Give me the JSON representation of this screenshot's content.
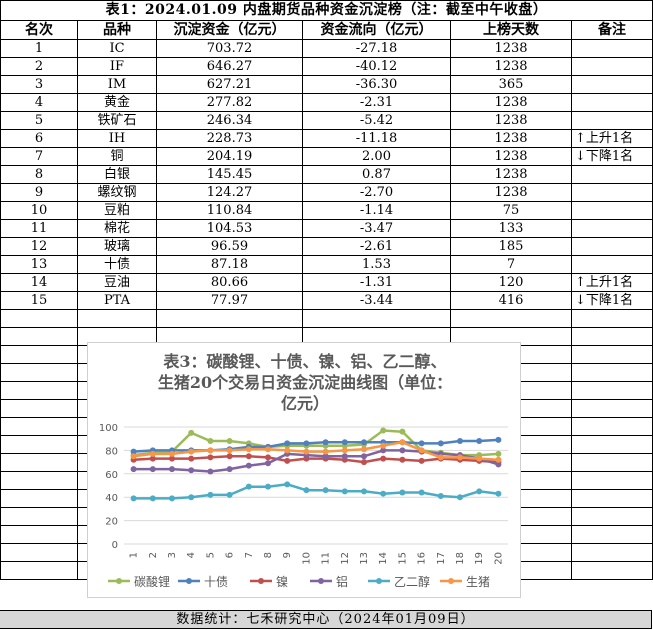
{
  "table": {
    "title": "表1：2024.01.09 内盘期货品种资金沉淀榜（注：截至中午收盘）",
    "headers": [
      "名次",
      "品种",
      "沉淀资金（亿元）",
      "资金流向（亿元）",
      "上榜天数",
      "备注"
    ],
    "rows": [
      {
        "rank": "1",
        "name": "IC",
        "fund": "703.72",
        "flow": "-27.18",
        "days": "1238",
        "note": ""
      },
      {
        "rank": "2",
        "name": "IF",
        "fund": "646.27",
        "flow": "-40.12",
        "days": "1238",
        "note": ""
      },
      {
        "rank": "3",
        "name": "IM",
        "fund": "627.21",
        "flow": "-36.30",
        "days": "365",
        "note": ""
      },
      {
        "rank": "4",
        "name": "黄金",
        "fund": "277.82",
        "flow": "-2.31",
        "days": "1238",
        "note": ""
      },
      {
        "rank": "5",
        "name": "铁矿石",
        "fund": "246.34",
        "flow": "-5.42",
        "days": "1238",
        "note": ""
      },
      {
        "rank": "6",
        "name": "IH",
        "fund": "228.73",
        "flow": "-11.18",
        "days": "1238",
        "note": "↑上升1名"
      },
      {
        "rank": "7",
        "name": "铜",
        "fund": "204.19",
        "flow": "2.00",
        "days": "1238",
        "note": "↓下降1名"
      },
      {
        "rank": "8",
        "name": "白银",
        "fund": "145.45",
        "flow": "0.87",
        "days": "1238",
        "note": ""
      },
      {
        "rank": "9",
        "name": "螺纹钢",
        "fund": "124.27",
        "flow": "-2.70",
        "days": "1238",
        "note": ""
      },
      {
        "rank": "10",
        "name": "豆粕",
        "fund": "110.84",
        "flow": "-1.14",
        "days": "75",
        "note": ""
      },
      {
        "rank": "11",
        "name": "棉花",
        "fund": "104.53",
        "flow": "-3.47",
        "days": "133",
        "note": ""
      },
      {
        "rank": "12",
        "name": "玻璃",
        "fund": "96.59",
        "flow": "-2.61",
        "days": "185",
        "note": ""
      },
      {
        "rank": "13",
        "name": "十债",
        "fund": "87.18",
        "flow": "1.53",
        "days": "7",
        "note": ""
      },
      {
        "rank": "14",
        "name": "豆油",
        "fund": "80.66",
        "flow": "-1.31",
        "days": "120",
        "note": "↑上升1名"
      },
      {
        "rank": "15",
        "name": "PTA",
        "fund": "77.97",
        "flow": "-3.44",
        "days": "416",
        "note": "↓下降1名"
      }
    ]
  },
  "footer": "数据统计：七禾研究中心（2024年01月09日）",
  "chart_data": {
    "type": "line",
    "title": "表3：碳酸锂、十债、镍、铝、乙二醇、生猪20个交易日资金沉淀曲线图（单位：亿元）",
    "title_lines": [
      "表3：碳酸锂、十债、镍、铝、乙二醇、",
      "生猪20个交易日资金沉淀曲线图（单位：",
      "亿元）"
    ],
    "x": [
      1,
      2,
      3,
      4,
      5,
      6,
      7,
      8,
      9,
      10,
      11,
      12,
      13,
      14,
      15,
      16,
      17,
      18,
      19,
      20
    ],
    "x_labels": [
      "1",
      "2",
      "3",
      "4",
      "5",
      "6",
      "7",
      "8",
      "9",
      "10",
      "11",
      "12",
      "13",
      "14",
      "15",
      "16",
      "17",
      "18",
      "19",
      "20"
    ],
    "ylim": [
      0,
      100
    ],
    "yticks": [
      0,
      20,
      40,
      60,
      80,
      100
    ],
    "ytick_labels": [
      "0",
      "20",
      "40",
      "60",
      "80",
      "100"
    ],
    "grid": true,
    "legend_position": "bottom",
    "series": [
      {
        "name": "碳酸锂",
        "color": "#9bbb59",
        "values": [
          76,
          78,
          79,
          95,
          88,
          88,
          86,
          83,
          84,
          84,
          84,
          84,
          85,
          97,
          96,
          80,
          78,
          76,
          76,
          77
        ]
      },
      {
        "name": "十债",
        "color": "#4f81bd",
        "values": [
          79,
          80,
          80,
          80,
          80,
          81,
          83,
          83,
          86,
          86,
          87,
          87,
          87,
          87,
          87,
          86,
          86,
          88,
          88,
          89
        ]
      },
      {
        "name": "镍",
        "color": "#c0504d",
        "values": [
          72,
          73,
          73,
          73,
          74,
          75,
          75,
          74,
          71,
          73,
          73,
          72,
          70,
          73,
          72,
          71,
          73,
          72,
          71,
          70
        ]
      },
      {
        "name": "铝",
        "color": "#8064a2",
        "values": [
          64,
          64,
          64,
          63,
          62,
          64,
          67,
          69,
          77,
          76,
          75,
          75,
          75,
          80,
          80,
          79,
          77,
          76,
          73,
          68
        ]
      },
      {
        "name": "乙二醇",
        "color": "#4bacc6",
        "values": [
          39,
          39,
          39,
          40,
          42,
          42,
          49,
          49,
          51,
          46,
          46,
          45,
          45,
          43,
          44,
          44,
          41,
          40,
          45,
          43
        ]
      },
      {
        "name": "生猪",
        "color": "#f79646",
        "values": [
          75,
          77,
          77,
          79,
          80,
          80,
          81,
          81,
          80,
          79,
          79,
          80,
          81,
          84,
          87,
          80,
          74,
          74,
          73,
          72
        ]
      }
    ]
  }
}
